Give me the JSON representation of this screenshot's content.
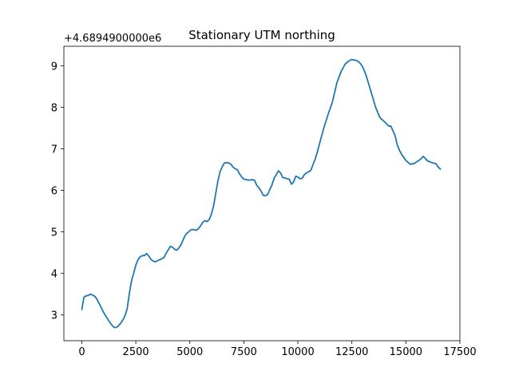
{
  "chart_data": {
    "type": "line",
    "title": "Stationary UTM northing",
    "xlabel": "",
    "ylabel": "",
    "y_offset_label": "+4.6894900000e6",
    "xlim": [
      -830,
      17500
    ],
    "ylim": [
      2.38,
      9.47
    ],
    "xticks": [
      0,
      2500,
      5000,
      7500,
      10000,
      12500,
      15000,
      17500
    ],
    "xtick_labels": [
      "0",
      "2500",
      "5000",
      "7500",
      "10000",
      "12500",
      "15000",
      "17500"
    ],
    "yticks": [
      3,
      4,
      5,
      6,
      7,
      8,
      9
    ],
    "ytick_labels": [
      "3",
      "4",
      "5",
      "6",
      "7",
      "8",
      "9"
    ],
    "grid": false,
    "series": [
      {
        "color": "#1f77b4",
        "x": [
          0,
          100,
          200,
          300,
          400,
          500,
          600,
          700,
          800,
          900,
          1000,
          1100,
          1200,
          1300,
          1400,
          1500,
          1600,
          1700,
          1800,
          1900,
          2000,
          2100,
          2200,
          2300,
          2400,
          2500,
          2600,
          2700,
          2800,
          2900,
          3000,
          3100,
          3200,
          3300,
          3400,
          3600,
          3800,
          3900,
          4000,
          4100,
          4200,
          4300,
          4400,
          4500,
          4600,
          4700,
          4800,
          4900,
          5000,
          5100,
          5200,
          5300,
          5400,
          5500,
          5600,
          5700,
          5800,
          5900,
          6000,
          6100,
          6200,
          6300,
          6400,
          6500,
          6600,
          6700,
          6800,
          6900,
          7000,
          7100,
          7200,
          7300,
          7400,
          7500,
          7600,
          7700,
          7800,
          7900,
          8000,
          8100,
          8200,
          8300,
          8400,
          8500,
          8600,
          8700,
          8800,
          8900,
          9000,
          9100,
          9200,
          9300,
          9400,
          9500,
          9600,
          9700,
          9800,
          9900,
          10000,
          10100,
          10200,
          10300,
          10400,
          10500,
          10600,
          10700,
          10800,
          10900,
          11000,
          11200,
          11400,
          11600,
          11800,
          12000,
          12200,
          12400,
          12500,
          12600,
          12700,
          12800,
          12900,
          13000,
          13100,
          13200,
          13400,
          13600,
          13800,
          14000,
          14200,
          14300,
          14500,
          14600,
          14700,
          14800,
          15000,
          15200,
          15400,
          15500,
          15600,
          15700,
          15800,
          15900,
          16000,
          16200,
          16400,
          16500,
          16600
        ],
        "y": [
          3.13,
          3.43,
          3.46,
          3.47,
          3.5,
          3.48,
          3.45,
          3.38,
          3.28,
          3.18,
          3.07,
          2.98,
          2.9,
          2.82,
          2.75,
          2.7,
          2.7,
          2.74,
          2.8,
          2.88,
          2.98,
          3.15,
          3.52,
          3.82,
          4.0,
          4.2,
          4.33,
          4.4,
          4.43,
          4.43,
          4.48,
          4.42,
          4.34,
          4.3,
          4.28,
          4.33,
          4.38,
          4.48,
          4.57,
          4.65,
          4.63,
          4.58,
          4.56,
          4.62,
          4.7,
          4.82,
          4.93,
          4.98,
          5.03,
          5.06,
          5.05,
          5.04,
          5.08,
          5.15,
          5.23,
          5.27,
          5.25,
          5.3,
          5.43,
          5.63,
          5.93,
          6.23,
          6.45,
          6.57,
          6.66,
          6.67,
          6.66,
          6.63,
          6.56,
          6.52,
          6.5,
          6.4,
          6.32,
          6.27,
          6.26,
          6.25,
          6.25,
          6.26,
          6.24,
          6.12,
          6.06,
          5.98,
          5.88,
          5.87,
          5.9,
          6.02,
          6.13,
          6.29,
          6.38,
          6.47,
          6.42,
          6.31,
          6.3,
          6.28,
          6.27,
          6.15,
          6.2,
          6.34,
          6.32,
          6.28,
          6.29,
          6.38,
          6.42,
          6.45,
          6.48,
          6.62,
          6.75,
          6.92,
          7.12,
          7.5,
          7.83,
          8.13,
          8.58,
          8.86,
          9.05,
          9.13,
          9.15,
          9.14,
          9.13,
          9.1,
          9.05,
          8.97,
          8.85,
          8.7,
          8.35,
          8.0,
          7.75,
          7.66,
          7.55,
          7.55,
          7.32,
          7.1,
          6.97,
          6.87,
          6.72,
          6.63,
          6.65,
          6.69,
          6.72,
          6.76,
          6.82,
          6.77,
          6.71,
          6.67,
          6.64,
          6.56,
          6.51
        ]
      }
    ]
  }
}
